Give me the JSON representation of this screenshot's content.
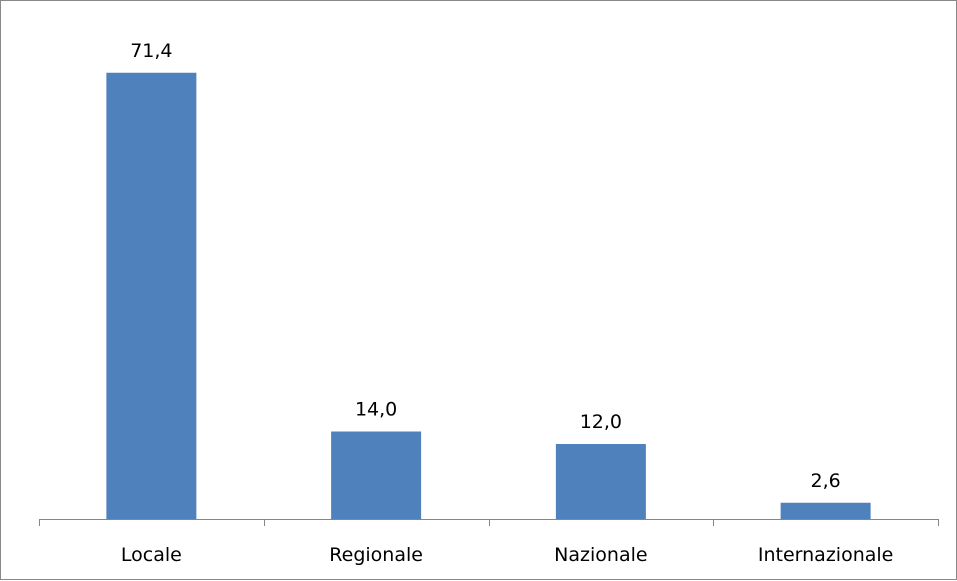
{
  "chart_data": {
    "type": "bar",
    "categories": [
      "Locale",
      "Regionale",
      "Nazionale",
      "Internazionale"
    ],
    "values": [
      71.4,
      14.0,
      12.0,
      2.6
    ],
    "data_labels": [
      "71,4",
      "14,0",
      "12,0",
      "2,6"
    ],
    "title": "",
    "xlabel": "",
    "ylabel": "",
    "ylim": [
      0,
      80
    ],
    "grid": false,
    "legend": "none",
    "bar_color": "#4f81bd",
    "axis_color": "#868686"
  }
}
